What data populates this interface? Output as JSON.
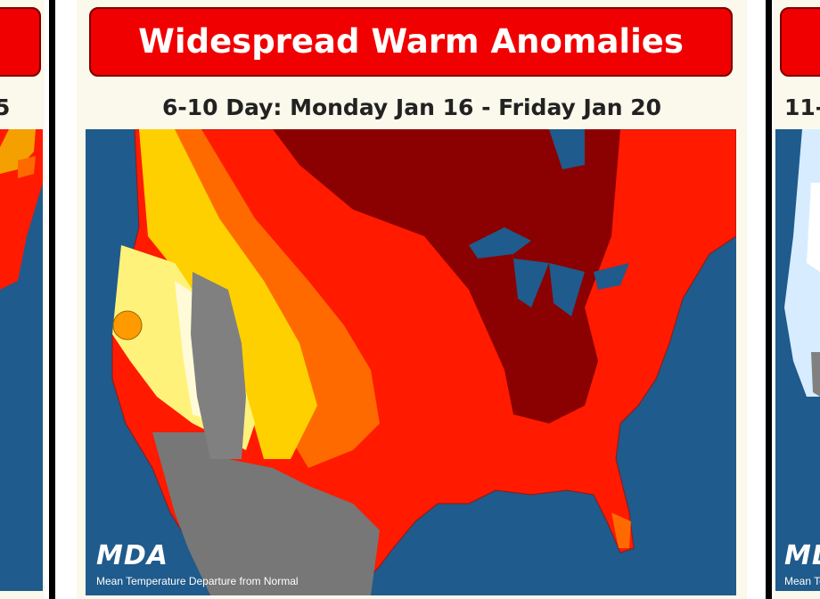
{
  "panels": [
    {
      "subtitle": "5"
    },
    {
      "title": "Widespread Warm Anomalies",
      "subtitle": "6-10 Day: Monday Jan 16 - Friday Jan 20",
      "logo": "MDA",
      "caption": "Mean Temperature Departure from Normal"
    },
    {
      "subtitle": "11-",
      "logo": "MDA",
      "caption": "Mean Temperature Departure from Normal"
    }
  ]
}
